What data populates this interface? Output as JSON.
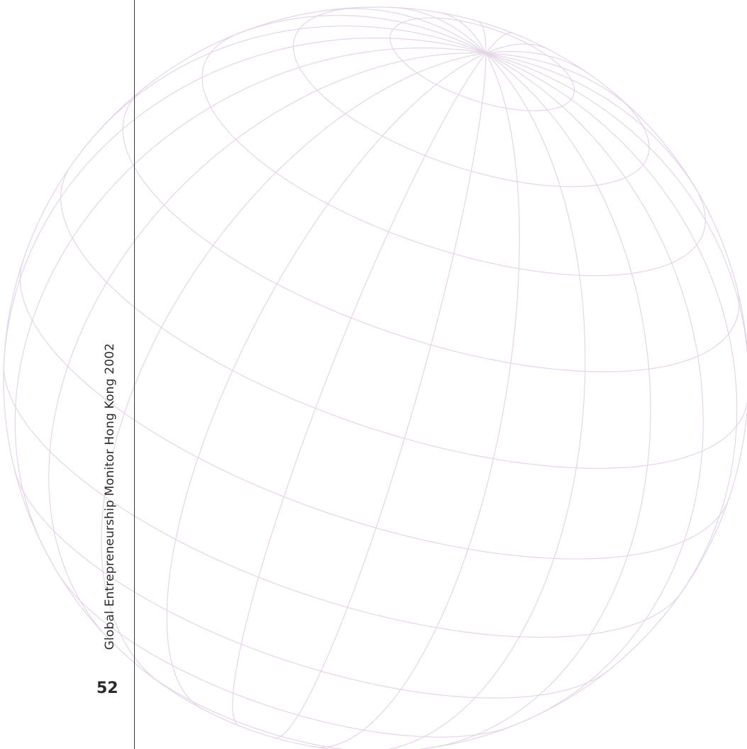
{
  "document": {
    "running_title": "Global Entrepreneurship Monitor Hong Kong 2002",
    "page_number": "52"
  },
  "colors": {
    "globe_line": "#e3d6e6",
    "rule": "#3a3a3a",
    "text": "#2b2b2b"
  },
  "icons": {
    "globe": "wireframe-globe-icon"
  }
}
